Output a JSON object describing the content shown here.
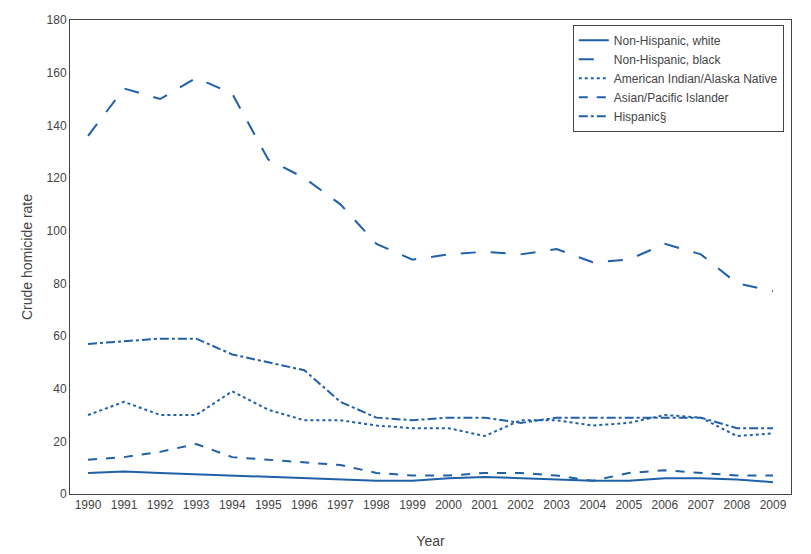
{
  "chart_data": {
    "type": "line",
    "x": [
      1990,
      1991,
      1992,
      1993,
      1994,
      1995,
      1996,
      1997,
      1998,
      1999,
      2000,
      2001,
      2002,
      2003,
      2004,
      2005,
      2006,
      2007,
      2008,
      2009
    ],
    "series": [
      {
        "name": "Non-Hispanic, white",
        "color": "#2060a8",
        "line_style": "solid",
        "values": [
          8.0,
          8.5,
          8.0,
          7.5,
          7.0,
          6.5,
          6.0,
          5.5,
          5.0,
          5.0,
          6.0,
          6.5,
          6.0,
          5.5,
          5.0,
          5.0,
          6.0,
          6.0,
          5.5,
          4.5
        ]
      },
      {
        "name": "Non-Hispanic, black",
        "color": "#2060a8",
        "line_style": "longdash",
        "values": [
          136,
          154,
          150,
          158,
          152,
          127,
          120,
          110,
          95,
          89,
          91,
          92,
          91,
          93,
          88,
          89,
          95,
          91,
          80,
          77
        ]
      },
      {
        "name": "American Indian/Alaska Native",
        "color": "#2060a8",
        "line_style": "dot",
        "values": [
          30,
          35,
          30,
          30,
          39,
          32,
          28,
          28,
          26,
          25,
          25,
          22,
          28,
          28,
          26,
          27,
          30,
          29,
          22,
          23
        ]
      },
      {
        "name": "Asian/Pacific Islander",
        "color": "#2060a8",
        "line_style": "dash",
        "values": [
          13,
          14,
          16,
          19,
          14,
          13,
          12,
          11,
          8,
          7,
          7,
          8,
          8,
          7,
          5,
          8,
          9,
          8,
          7,
          7
        ]
      },
      {
        "name": "Hispanic§",
        "color": "#2060a8",
        "line_style": "dashdot",
        "values": [
          57,
          58,
          59,
          59,
          53,
          50,
          47,
          35,
          29,
          28,
          29,
          29,
          27,
          29,
          29,
          29,
          29,
          29,
          25,
          25
        ]
      }
    ],
    "xlabel": "Year",
    "ylabel": "Crude homicide rate",
    "xlim": [
      1989.5,
      2009.5
    ],
    "xticks": [
      1990,
      1991,
      1992,
      1993,
      1994,
      1995,
      1996,
      1997,
      1998,
      1999,
      2000,
      2001,
      2002,
      2003,
      2004,
      2005,
      2006,
      2007,
      2008,
      2009
    ],
    "ylim": [
      0,
      180
    ],
    "yticks": [
      0,
      20,
      40,
      60,
      80,
      100,
      120,
      140,
      160,
      180
    ],
    "grid": false,
    "legend": "upper right"
  }
}
